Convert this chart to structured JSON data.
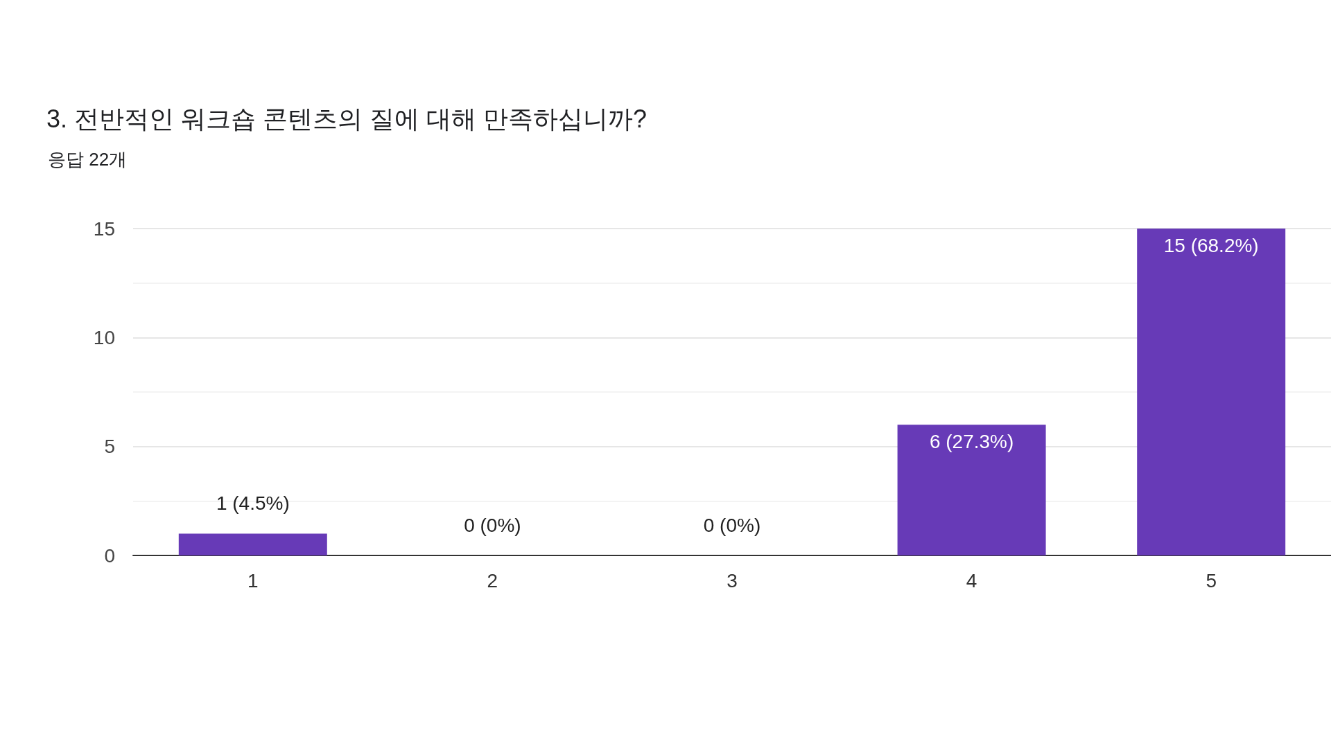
{
  "chart_data": {
    "type": "bar",
    "title": "3. 전반적인 워크숍 콘텐츠의 질에 대해 만족하십니까?",
    "subtitle": "응답 22개",
    "categories": [
      "1",
      "2",
      "3",
      "4",
      "5"
    ],
    "values": [
      1,
      0,
      0,
      6,
      15
    ],
    "value_labels": [
      "1 (4.5%)",
      "0 (0%)",
      "0 (0%)",
      "6 (27.3%)",
      "15 (68.2%)"
    ],
    "color": "#673ab7",
    "ylim": [
      0,
      15
    ],
    "yticks": [
      0,
      5,
      10,
      15
    ],
    "grid": "y"
  }
}
